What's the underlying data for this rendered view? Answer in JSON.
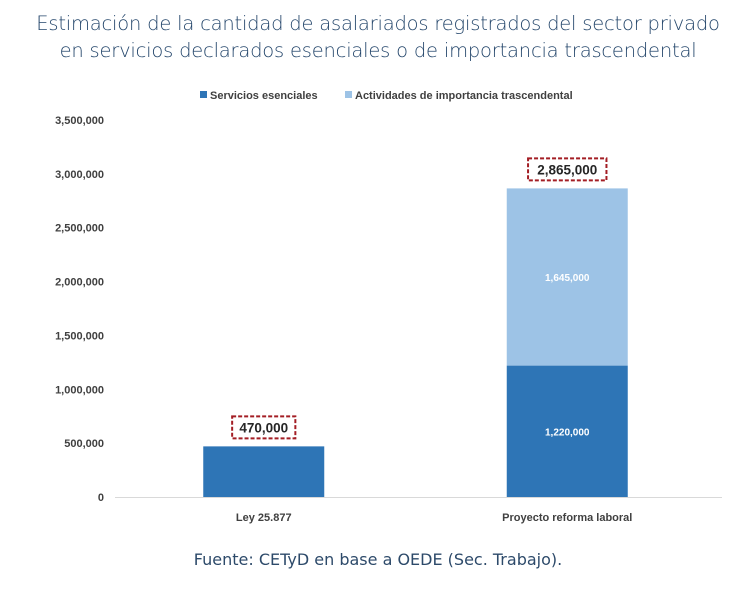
{
  "title_line1": "Estimación de la cantidad de asalariados registrados del sector privado",
  "title_line2": "en servicios declarados esenciales o de importancia trascendental",
  "source": "Fuente: CETyD en base a OEDE (Sec. Trabajo).",
  "colors": {
    "series1": "#2E75B6",
    "series2": "#9DC3E6",
    "highlight": "#A31D24"
  },
  "chart_data": {
    "type": "bar",
    "stacked": true,
    "title": "Estimación de la cantidad de asalariados registrados del sector privado en servicios declarados esenciales o de importancia trascendental",
    "categories": [
      "Ley 25.877",
      "Proyecto reforma laboral"
    ],
    "series": [
      {
        "name": "Servicios esenciales",
        "values": [
          470000,
          1220000
        ],
        "labels": [
          "",
          "1,220,000"
        ]
      },
      {
        "name": "Actividades de importancia trascendental",
        "values": [
          0,
          1645000
        ],
        "labels": [
          "",
          "1,645,000"
        ]
      }
    ],
    "totals": [
      "470,000",
      "2,865,000"
    ],
    "ylim": [
      0,
      3500000
    ],
    "yticks": [
      0,
      500000,
      1000000,
      1500000,
      2000000,
      2500000,
      3000000,
      3500000
    ],
    "ytick_labels": [
      "0",
      "500,000",
      "1,000,000",
      "1,500,000",
      "2,000,000",
      "2,500,000",
      "3,000,000",
      "3,500,000"
    ],
    "legend_position": "top-center",
    "grid": false,
    "xlabel": "",
    "ylabel": ""
  }
}
